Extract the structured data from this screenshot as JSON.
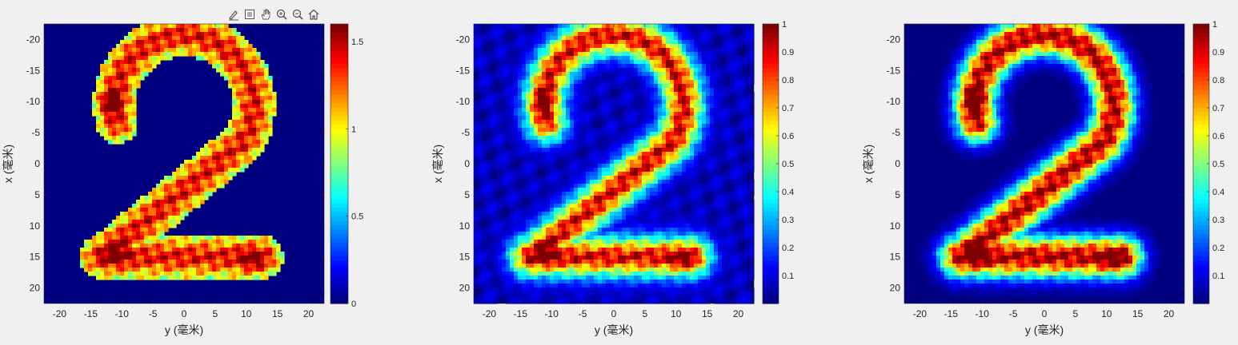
{
  "toolbar": {
    "icons": [
      "brush-icon",
      "data-tips-icon",
      "pan-hand-icon",
      "zoom-in-icon",
      "zoom-out-icon",
      "home-icon"
    ]
  },
  "colors": {
    "background": "#f0f0f0",
    "axes_line": "#262626",
    "colormap": "jet",
    "colormap_stops": [
      "#00007f",
      "#0000ff",
      "#007fff",
      "#00ffff",
      "#7fff7f",
      "#ffff00",
      "#ff7f00",
      "#ff0000",
      "#7f0000"
    ]
  },
  "chart_data": [
    {
      "type": "heatmap",
      "description_shape": "digit 2 intensity image, sharp mask edges",
      "xlabel": "y (毫米)",
      "ylabel": "x (毫米)",
      "xlim": [
        -22.5,
        22.5
      ],
      "ylim": [
        -22.5,
        22.5
      ],
      "y_reversed": true,
      "xticks": [
        -20,
        -15,
        -10,
        -5,
        0,
        5,
        10,
        15,
        20
      ],
      "yticks": [
        -20,
        -15,
        -10,
        -5,
        0,
        5,
        10,
        15,
        20
      ],
      "xtick_labels": [
        "-20",
        "-15",
        "-10",
        "-5",
        "0",
        "5",
        "10",
        "15",
        "20"
      ],
      "ytick_labels": [
        "-20",
        "-15",
        "-10",
        "-5",
        "0",
        "5",
        "10",
        "15",
        "20"
      ],
      "colorbar": {
        "clim": [
          0,
          1.6
        ],
        "ticks": [
          0,
          0.5,
          1,
          1.5
        ],
        "tick_labels": [
          "0",
          "0.5",
          "1",
          "1.5"
        ]
      },
      "blur": 0,
      "background_level": 0
    },
    {
      "type": "heatmap",
      "xlabel": "y (毫米)",
      "ylabel": "x (毫米)",
      "xlim": [
        -22.5,
        22.5
      ],
      "ylim": [
        -22.5,
        22.5
      ],
      "y_reversed": true,
      "xticks": [
        -20,
        -15,
        -10,
        -5,
        0,
        5,
        10,
        15,
        20
      ],
      "yticks": [
        -20,
        -15,
        -10,
        -5,
        0,
        5,
        10,
        15,
        20
      ],
      "xtick_labels": [
        "-20",
        "-15",
        "-10",
        "-5",
        "0",
        "5",
        "10",
        "15",
        "20"
      ],
      "ytick_labels": [
        "-20",
        "-15",
        "-10",
        "-5",
        "0",
        "5",
        "10",
        "15",
        "20"
      ],
      "colorbar": {
        "clim": [
          0,
          1
        ],
        "ticks": [
          0.1,
          0.2,
          0.3,
          0.4,
          0.5,
          0.6,
          0.7,
          0.8,
          0.9,
          1
        ],
        "tick_labels": [
          "0.1",
          "0.2",
          "0.3",
          "0.4",
          "0.5",
          "0.6",
          "0.7",
          "0.8",
          "0.9",
          "1"
        ]
      },
      "blur": 2.2,
      "background_level": 0.12
    },
    {
      "type": "heatmap",
      "xlabel": "y (毫米)",
      "ylabel": "x (毫米)",
      "xlim": [
        -22.5,
        22.5
      ],
      "ylim": [
        -22.5,
        22.5
      ],
      "y_reversed": true,
      "xticks": [
        -20,
        -15,
        -10,
        -5,
        0,
        5,
        10,
        15,
        20
      ],
      "yticks": [
        -20,
        -15,
        -10,
        -5,
        0,
        5,
        10,
        15,
        20
      ],
      "xtick_labels": [
        "-20",
        "-15",
        "-10",
        "-5",
        "0",
        "5",
        "10",
        "15",
        "20"
      ],
      "ytick_labels": [
        "-20",
        "-15",
        "-10",
        "-5",
        "0",
        "5",
        "10",
        "15",
        "20"
      ],
      "colorbar": {
        "clim": [
          0,
          1
        ],
        "ticks": [
          0.1,
          0.2,
          0.3,
          0.4,
          0.5,
          0.6,
          0.7,
          0.8,
          0.9,
          1
        ],
        "tick_labels": [
          "0.1",
          "0.2",
          "0.3",
          "0.4",
          "0.5",
          "0.6",
          "0.7",
          "0.8",
          "0.9",
          "1"
        ]
      },
      "blur": 1.6,
      "background_level": 0.02
    }
  ]
}
